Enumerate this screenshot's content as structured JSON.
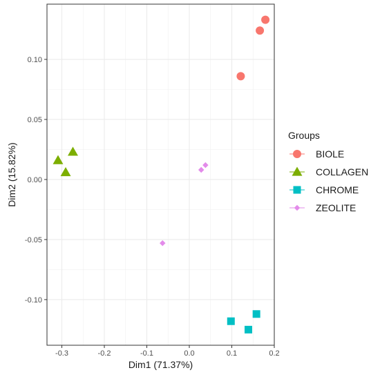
{
  "chart_data": {
    "type": "scatter",
    "xlabel": "Dim1 (71.37%)",
    "ylabel": "Dim2 (15.82%)",
    "xlim": [
      -0.335,
      0.2
    ],
    "ylim": [
      -0.138,
      0.146
    ],
    "x_ticks": [
      -0.3,
      -0.2,
      -0.1,
      0.0,
      0.1,
      0.2
    ],
    "x_tick_labels": [
      "-0.3",
      "-0.2",
      "-0.1",
      "0.0",
      "0.1",
      "0.2"
    ],
    "y_ticks": [
      -0.1,
      -0.05,
      0.0,
      0.05,
      0.1
    ],
    "y_tick_labels": [
      "-0.10",
      "-0.05",
      "0.00",
      "0.05",
      "0.10"
    ],
    "grid": true,
    "legend": {
      "title": "Groups",
      "placement": "right"
    },
    "series": [
      {
        "name": "BIOLE",
        "shape": "circle",
        "color": "#F8766D",
        "points": [
          [
            0.179,
            0.133
          ],
          [
            0.166,
            0.124
          ],
          [
            0.121,
            0.086
          ]
        ]
      },
      {
        "name": "COLLAGEN",
        "shape": "triangle",
        "color": "#7CAE00",
        "points": [
          [
            -0.309,
            0.016
          ],
          [
            -0.274,
            0.023
          ],
          [
            -0.291,
            0.006
          ]
        ]
      },
      {
        "name": "CHROME",
        "shape": "square",
        "color": "#00BFC4",
        "points": [
          [
            0.098,
            -0.118
          ],
          [
            0.158,
            -0.112
          ],
          [
            0.139,
            -0.125
          ]
        ]
      },
      {
        "name": "ZEOLITE",
        "shape": "diamond",
        "color": "#E38BEA",
        "points": [
          [
            0.038,
            0.012
          ],
          [
            0.028,
            0.008
          ],
          [
            -0.063,
            -0.053
          ]
        ]
      }
    ]
  }
}
